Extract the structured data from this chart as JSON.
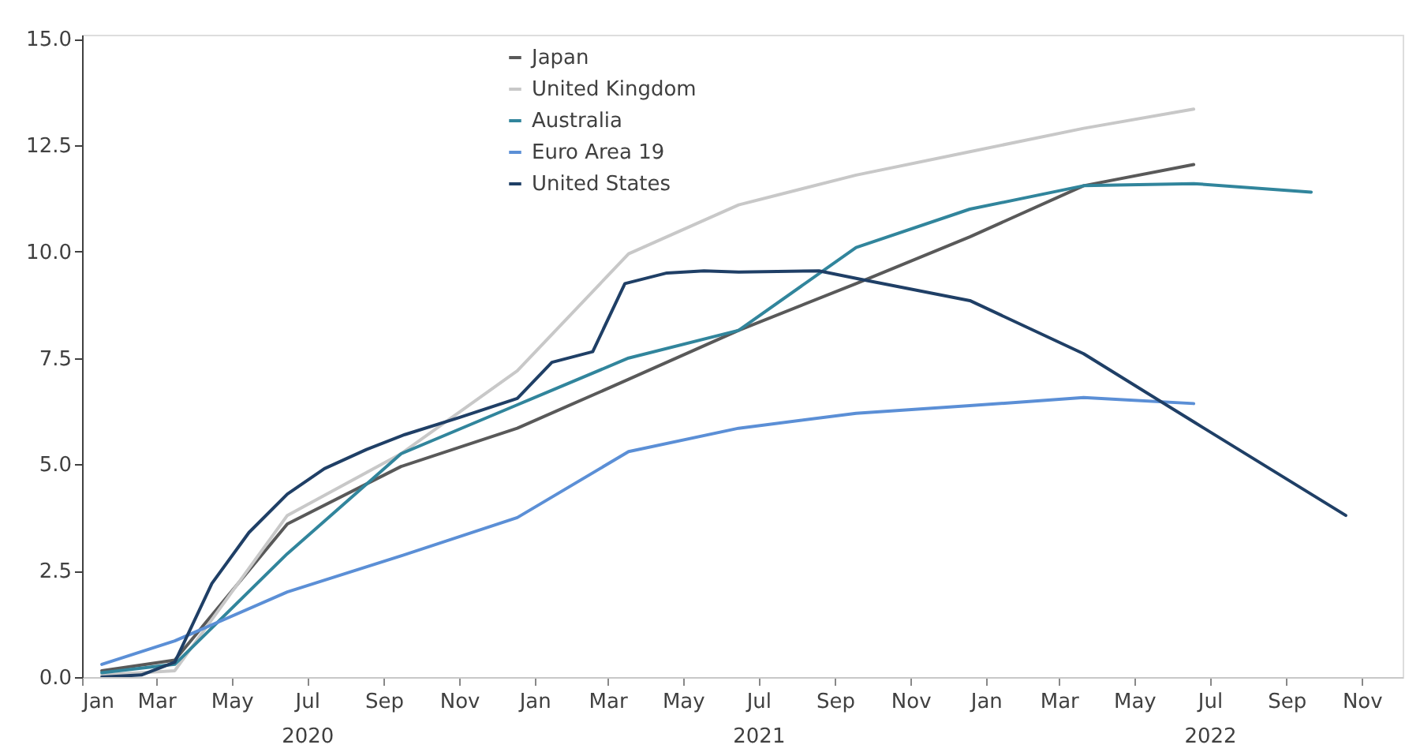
{
  "chart_data": {
    "type": "line",
    "legend": "top",
    "grid": false,
    "marker": "none",
    "line_style": "solid",
    "xlim": [
      "2020-01-01",
      "2022-12-04"
    ],
    "ylim": [
      0,
      15.1
    ],
    "xticks": [
      {
        "value": "2020-01-01",
        "label": "Jan"
      },
      {
        "value": "2020-03-01",
        "label": "Mar"
      },
      {
        "value": "2020-05-01",
        "label": "May"
      },
      {
        "value": "2020-07-01",
        "label": "Jul\n2020"
      },
      {
        "value": "2020-09-01",
        "label": "Sep"
      },
      {
        "value": "2020-11-01",
        "label": "Nov"
      },
      {
        "value": "2021-01-01",
        "label": "Jan"
      },
      {
        "value": "2021-03-01",
        "label": "Mar"
      },
      {
        "value": "2021-05-01",
        "label": "May"
      },
      {
        "value": "2021-07-01",
        "label": "Jul\n2021"
      },
      {
        "value": "2021-09-01",
        "label": "Sep"
      },
      {
        "value": "2021-11-01",
        "label": "Nov"
      },
      {
        "value": "2022-01-01",
        "label": "Jan"
      },
      {
        "value": "2022-03-01",
        "label": "Mar"
      },
      {
        "value": "2022-05-01",
        "label": "May"
      },
      {
        "value": "2022-07-01",
        "label": "Jul\n2022"
      },
      {
        "value": "2022-09-01",
        "label": "Sep"
      },
      {
        "value": "2022-11-01",
        "label": "Nov"
      }
    ],
    "yticks": [
      {
        "value": 0,
        "label": "0.0"
      },
      {
        "value": 2.5,
        "label": "2.5"
      },
      {
        "value": 5,
        "label": "5.0"
      },
      {
        "value": 7.5,
        "label": "7.5"
      },
      {
        "value": 10,
        "label": "10.0"
      },
      {
        "value": 12.5,
        "label": "12.5"
      },
      {
        "value": 15,
        "label": "15.0"
      }
    ],
    "series": [
      {
        "name": "Japan",
        "color": "#595959",
        "x": [
          "2020-01-17",
          "2020-03-16",
          "2020-06-15",
          "2020-09-15",
          "2020-12-18",
          "2021-03-18",
          "2021-06-15",
          "2021-09-18",
          "2021-12-19",
          "2022-03-21",
          "2022-06-18"
        ],
        "values": [
          0.15,
          0.4,
          3.6,
          4.95,
          5.85,
          7.0,
          8.15,
          9.25,
          10.35,
          11.55,
          12.05
        ]
      },
      {
        "name": "United Kingdom",
        "color": "#c8c8c8",
        "x": [
          "2020-01-17",
          "2020-03-16",
          "2020-06-15",
          "2020-09-15",
          "2020-12-18",
          "2021-03-18",
          "2021-06-15",
          "2021-09-18",
          "2021-12-19",
          "2022-03-21",
          "2022-06-18"
        ],
        "values": [
          0.05,
          0.15,
          3.8,
          5.25,
          7.2,
          9.95,
          11.1,
          11.8,
          12.35,
          12.9,
          13.35
        ]
      },
      {
        "name": "Australia",
        "color": "#31859c",
        "x": [
          "2020-01-17",
          "2020-03-16",
          "2020-06-15",
          "2020-09-15",
          "2020-12-18",
          "2021-03-18",
          "2021-06-15",
          "2021-09-18",
          "2021-12-19",
          "2022-03-21",
          "2022-06-18",
          "2022-09-21"
        ],
        "values": [
          0.1,
          0.3,
          2.9,
          5.25,
          6.4,
          7.5,
          8.15,
          10.1,
          11.0,
          11.55,
          11.6,
          11.4
        ]
      },
      {
        "name": "Euro Area 19",
        "color": "#5b8fd6",
        "x": [
          "2020-01-17",
          "2020-03-16",
          "2020-06-15",
          "2020-09-15",
          "2020-12-18",
          "2021-03-18",
          "2021-06-15",
          "2021-09-18",
          "2021-12-19",
          "2022-03-21",
          "2022-06-18"
        ],
        "values": [
          0.3,
          0.85,
          2.0,
          2.85,
          3.75,
          5.3,
          5.85,
          6.2,
          6.38,
          6.57,
          6.43
        ]
      },
      {
        "name": "United States",
        "color": "#1f3f66",
        "x": [
          "2020-01-17",
          "2020-02-18",
          "2020-03-16",
          "2020-04-15",
          "2020-05-15",
          "2020-06-15",
          "2020-07-15",
          "2020-08-18",
          "2020-09-18",
          "2020-11-01",
          "2020-12-18",
          "2021-01-15",
          "2021-02-17",
          "2021-03-15",
          "2021-04-18",
          "2021-05-18",
          "2021-06-15",
          "2021-08-19",
          "2021-09-22",
          "2021-12-19",
          "2022-03-21",
          "2022-06-18",
          "2022-10-19"
        ],
        "values": [
          0.0,
          0.05,
          0.35,
          2.2,
          3.4,
          4.3,
          4.9,
          5.35,
          5.7,
          6.1,
          6.55,
          7.4,
          7.65,
          9.25,
          9.5,
          9.55,
          9.52,
          9.55,
          9.35,
          8.85,
          7.6,
          6.0,
          3.8
        ]
      }
    ]
  }
}
